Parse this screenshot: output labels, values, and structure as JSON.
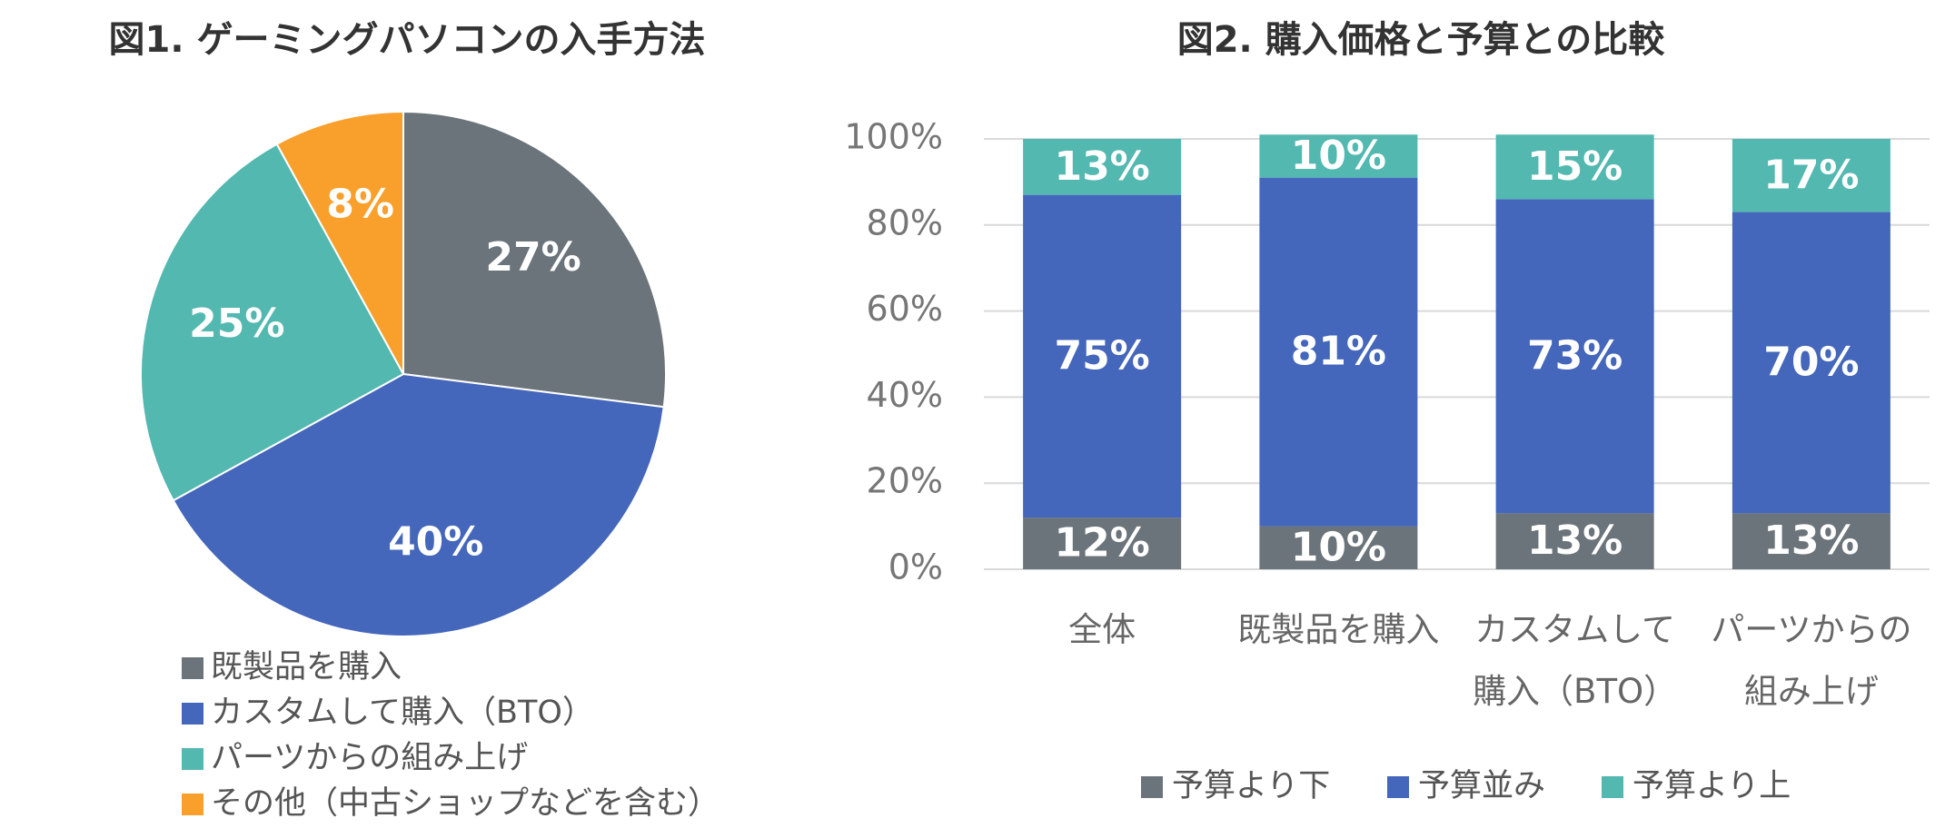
{
  "chart_data": [
    {
      "type": "pie",
      "title": "図1. ゲーミングパソコンの入手方法",
      "categories": [
        "既製品を購入",
        "カスタムして購入（BTO）",
        "パーツからの組み上げ",
        "その他（中古ショップなどを含む）"
      ],
      "values": [
        27,
        40,
        25,
        8
      ],
      "value_labels": [
        "27%",
        "40%",
        "25%",
        "8%"
      ],
      "colors": [
        "#6b747a",
        "#4466bb",
        "#52b8b0",
        "#f9a02c"
      ]
    },
    {
      "type": "bar",
      "stacked": true,
      "title": "図2. 購入価格と予算との比較",
      "categories": [
        "全体",
        "既製品を購入",
        "カスタムして購入（BTO）",
        "パーツからの組み上げ"
      ],
      "series": [
        {
          "name": "予算より下",
          "color": "#6b747a",
          "values": [
            12,
            10,
            13,
            13
          ],
          "value_labels": [
            "12%",
            "10%",
            "13%",
            "13%"
          ]
        },
        {
          "name": "予算並み",
          "color": "#4466bb",
          "values": [
            75,
            81,
            73,
            70
          ],
          "value_labels": [
            "75%",
            "81%",
            "73%",
            "70%"
          ]
        },
        {
          "name": "予算より上",
          "color": "#52b8b0",
          "values": [
            13,
            10,
            15,
            17
          ],
          "value_labels": [
            "13%",
            "10%",
            "15%",
            "17%"
          ]
        }
      ],
      "ylim": [
        0,
        100
      ],
      "yticks": [
        {
          "value": 0,
          "label": "0%"
        },
        {
          "value": 20,
          "label": "20%"
        },
        {
          "value": 40,
          "label": "40%"
        },
        {
          "value": 60,
          "label": "60%"
        },
        {
          "value": 80,
          "label": "80%"
        },
        {
          "value": 100,
          "label": "100%"
        }
      ],
      "grid": true,
      "legend": "bottom"
    }
  ]
}
